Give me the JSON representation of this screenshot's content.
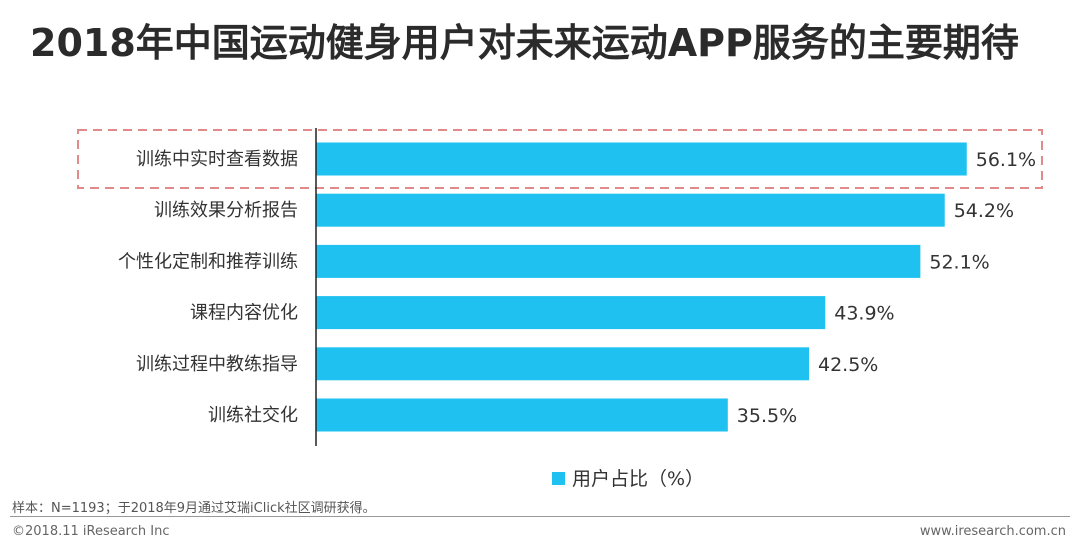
{
  "title": "2018年中国运动健身用户对未来运动APP服务的主要期待",
  "chart_data": {
    "type": "bar",
    "orientation": "horizontal",
    "categories": [
      "训练中实时查看数据",
      "训练效果分析报告",
      "个性化定制和推荐训练",
      "课程内容优化",
      "训练过程中教练指导",
      "训练社交化"
    ],
    "series": [
      {
        "name": "用户占比（%）",
        "values": [
          56.1,
          54.2,
          52.1,
          43.9,
          42.5,
          35.5
        ],
        "labels": [
          "56.1%",
          "54.2%",
          "52.1%",
          "43.9%",
          "42.5%",
          "35.5%"
        ]
      }
    ],
    "highlighted_category": "训练中实时查看数据",
    "xlim": [
      0,
      60
    ],
    "legend_position": "bottom-center",
    "grid": false,
    "bar_color": "#1ec1f0",
    "highlight_color": "#e08a8a"
  },
  "footnote": "样本：N=1193；于2018年9月通过艾瑞iClick社区调研获得。",
  "copyright": "©2018.11 iResearch Inc",
  "website": "www.iresearch.com.cn"
}
